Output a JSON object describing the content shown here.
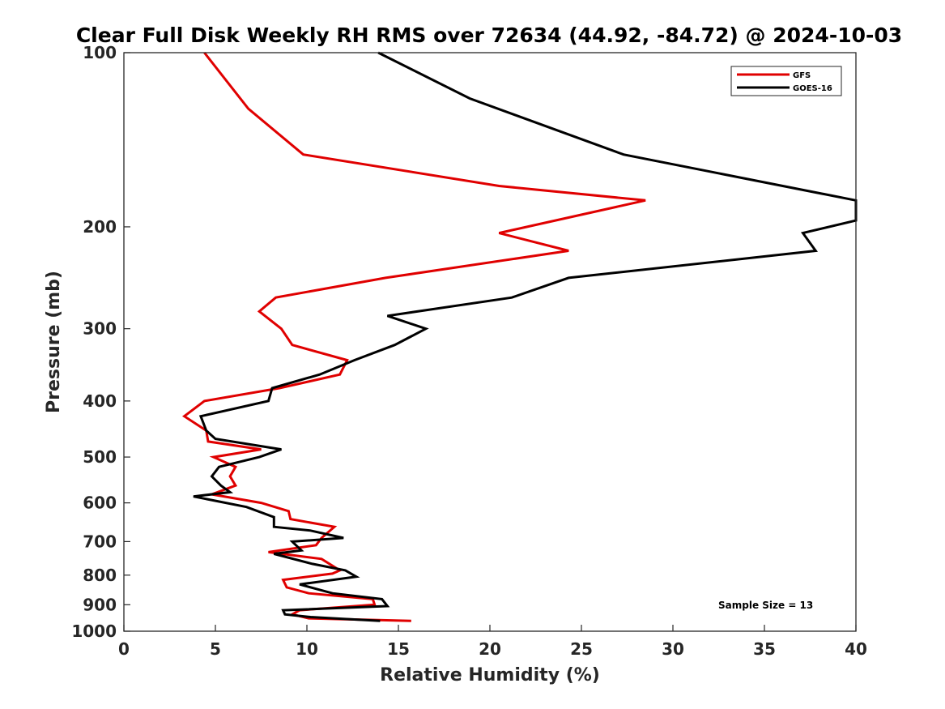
{
  "chart_data": {
    "type": "line",
    "title": "Clear Full Disk Weekly RH RMS over 72634 (44.92, -84.72) @ 2024-10-03",
    "xlabel": "Relative Humidity (%)",
    "ylabel": "Pressure (mb)",
    "xlim": [
      0,
      40
    ],
    "ylim": [
      100,
      1000
    ],
    "yscale": "log",
    "y_reversed": true,
    "xticks": [
      0,
      5,
      10,
      15,
      20,
      25,
      30,
      35,
      40
    ],
    "yticks": [
      100,
      200,
      300,
      400,
      500,
      600,
      700,
      800,
      900,
      1000
    ],
    "legend_position": "top-right",
    "annotation": "Sample Size = 13",
    "series": [
      {
        "name": "GFS",
        "color": "#e00000",
        "points": [
          [
            4.4,
            100
          ],
          [
            6.8,
            125
          ],
          [
            9.8,
            150
          ],
          [
            20.5,
            170
          ],
          [
            28.5,
            180
          ],
          [
            20.5,
            205
          ],
          [
            24.3,
            220
          ],
          [
            14.3,
            245
          ],
          [
            8.3,
            265
          ],
          [
            7.4,
            280
          ],
          [
            8.6,
            300
          ],
          [
            9.2,
            320
          ],
          [
            12.2,
            340
          ],
          [
            11.8,
            360
          ],
          [
            8.5,
            380
          ],
          [
            4.4,
            400
          ],
          [
            3.3,
            425
          ],
          [
            4.5,
            450
          ],
          [
            4.6,
            470
          ],
          [
            7.5,
            485
          ],
          [
            4.9,
            500
          ],
          [
            6.1,
            520
          ],
          [
            5.8,
            540
          ],
          [
            6.1,
            560
          ],
          [
            4.8,
            580
          ],
          [
            7.5,
            600
          ],
          [
            9,
            620
          ],
          [
            9.1,
            640
          ],
          [
            11.5,
            660
          ],
          [
            10.8,
            690
          ],
          [
            10.5,
            710
          ],
          [
            7.9,
            730
          ],
          [
            10.8,
            750
          ],
          [
            11.8,
            785
          ],
          [
            11.4,
            795
          ],
          [
            8.7,
            815
          ],
          [
            8.9,
            840
          ],
          [
            10.1,
            860
          ],
          [
            13.6,
            880
          ],
          [
            13.7,
            900
          ],
          [
            9.6,
            920
          ],
          [
            9.2,
            935
          ],
          [
            10.1,
            950
          ],
          [
            15.7,
            960
          ]
        ]
      },
      {
        "name": "GOES-16",
        "color": "#000000",
        "points": [
          [
            13.9,
            100
          ],
          [
            18.9,
            120
          ],
          [
            27.3,
            150
          ],
          [
            40,
            180
          ],
          [
            40,
            195
          ],
          [
            37.1,
            205
          ],
          [
            37.8,
            220
          ],
          [
            24.3,
            245
          ],
          [
            21.2,
            265
          ],
          [
            14.4,
            285
          ],
          [
            16.5,
            300
          ],
          [
            14.8,
            320
          ],
          [
            12.6,
            340
          ],
          [
            10.7,
            360
          ],
          [
            8.1,
            380
          ],
          [
            7.9,
            400
          ],
          [
            4.2,
            425
          ],
          [
            4.5,
            450
          ],
          [
            5,
            465
          ],
          [
            8.6,
            485
          ],
          [
            7.4,
            500
          ],
          [
            5.2,
            520
          ],
          [
            4.8,
            540
          ],
          [
            5.3,
            560
          ],
          [
            5.8,
            575
          ],
          [
            3.8,
            585
          ],
          [
            6.7,
            610
          ],
          [
            8.2,
            635
          ],
          [
            8.2,
            660
          ],
          [
            10.2,
            670
          ],
          [
            12,
            690
          ],
          [
            9.2,
            700
          ],
          [
            9.7,
            725
          ],
          [
            8.2,
            735
          ],
          [
            10.3,
            765
          ],
          [
            12.1,
            785
          ],
          [
            12.7,
            805
          ],
          [
            9.6,
            830
          ],
          [
            11.4,
            860
          ],
          [
            14.1,
            880
          ],
          [
            14.4,
            905
          ],
          [
            8.7,
            920
          ],
          [
            8.8,
            935
          ],
          [
            10.2,
            945
          ],
          [
            14,
            960
          ]
        ]
      }
    ]
  }
}
